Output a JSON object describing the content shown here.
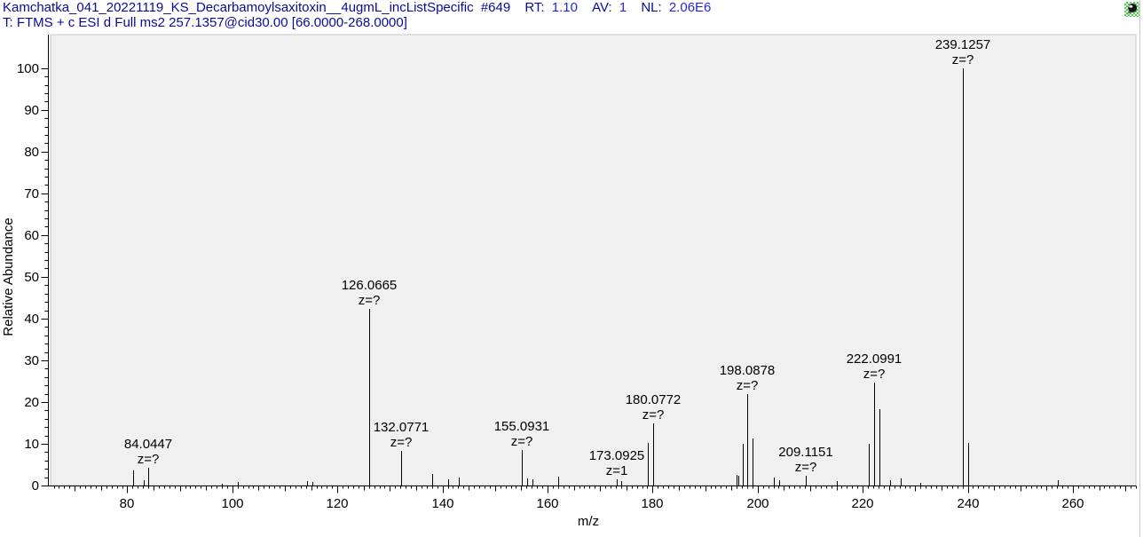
{
  "header": {
    "scan_title": "Kamchatka_041_20221119_KS_Decarbamoylsaxitoxin__4ugmL_incListSpecific",
    "scan_number": "#649",
    "rt_label": "RT:",
    "rt_value": "1.10",
    "av_label": "AV:",
    "av_value": "1",
    "nl_label": "NL:",
    "nl_value": "2.06E6",
    "filter_line": "T: FTMS + c ESI d Full ms2 257.1357@cid30.00 [66.0000-268.0000]"
  },
  "icon": {
    "name": "pin-icon"
  },
  "colors": {
    "header_label": "#0a0a96",
    "header_value": "#2626e0",
    "plot_background": "#f0f0f0",
    "plot_border": "#c9c9c9",
    "axis": "#000000",
    "peak": "#000000"
  },
  "chart_data": {
    "type": "bar",
    "subtype": "mass-spectrum",
    "title": "",
    "xlabel": "m/z",
    "ylabel": "Relative Abundance",
    "scan_range": [
      66.0,
      268.0
    ],
    "x_axis": {
      "display_min": 65.4,
      "display_max": 272.0,
      "tick_labels": [
        80,
        100,
        120,
        140,
        160,
        180,
        200,
        220,
        240,
        260
      ],
      "label_step": 20,
      "major_tick_step": 10,
      "mid_tick_step": 5,
      "minor_tick_step": 1
    },
    "y_axis": {
      "min": 0,
      "max": 100,
      "tick_labels": [
        0,
        10,
        20,
        30,
        40,
        50,
        60,
        70,
        80,
        90,
        100
      ],
      "label_step": 10,
      "minor_tick_step": 2
    },
    "peaks": [
      {
        "mz": 81.03,
        "intensity": 3.7
      },
      {
        "mz": 83.06,
        "intensity": 1.3
      },
      {
        "mz": 84.0447,
        "intensity": 4.3,
        "label": "84.0447",
        "charge": "z=?"
      },
      {
        "mz": 98.0,
        "intensity": 0.5
      },
      {
        "mz": 101.1,
        "intensity": 0.8
      },
      {
        "mz": 114.2,
        "intensity": 1.1
      },
      {
        "mz": 115.2,
        "intensity": 0.9
      },
      {
        "mz": 126.0665,
        "intensity": 42.3,
        "label": "126.0665",
        "charge": "z=?"
      },
      {
        "mz": 132.0771,
        "intensity": 8.3,
        "label": "132.0771",
        "charge": "z=?"
      },
      {
        "mz": 138.1,
        "intensity": 2.8
      },
      {
        "mz": 141.1,
        "intensity": 1.4
      },
      {
        "mz": 143.1,
        "intensity": 2.0
      },
      {
        "mz": 155.0931,
        "intensity": 8.5,
        "label": "155.0931",
        "charge": "z=?"
      },
      {
        "mz": 156.1,
        "intensity": 1.8
      },
      {
        "mz": 157.1,
        "intensity": 1.4
      },
      {
        "mz": 162.1,
        "intensity": 2.2
      },
      {
        "mz": 173.0925,
        "intensity": 1.5,
        "label": "173.0925",
        "charge": "z=1"
      },
      {
        "mz": 174.1,
        "intensity": 1.0
      },
      {
        "mz": 179.1,
        "intensity": 10.2
      },
      {
        "mz": 180.0772,
        "intensity": 14.8,
        "label": "180.0772",
        "charge": "z=?"
      },
      {
        "mz": 195.9,
        "intensity": 2.6
      },
      {
        "mz": 196.4,
        "intensity": 2.3
      },
      {
        "mz": 197.1,
        "intensity": 10.1
      },
      {
        "mz": 198.0878,
        "intensity": 22.0,
        "label": "198.0878",
        "charge": "z=?"
      },
      {
        "mz": 199.1,
        "intensity": 11.2
      },
      {
        "mz": 203.1,
        "intensity": 2.0
      },
      {
        "mz": 204.1,
        "intensity": 1.3
      },
      {
        "mz": 209.1151,
        "intensity": 2.3,
        "label": "209.1151",
        "charge": "z=?"
      },
      {
        "mz": 215.1,
        "intensity": 1.1
      },
      {
        "mz": 221.1,
        "intensity": 10.0
      },
      {
        "mz": 222.0991,
        "intensity": 24.7,
        "label": "222.0991",
        "charge": "z=?"
      },
      {
        "mz": 223.1,
        "intensity": 18.3
      },
      {
        "mz": 225.2,
        "intensity": 1.2
      },
      {
        "mz": 227.2,
        "intensity": 1.6
      },
      {
        "mz": 231.0,
        "intensity": 0.6
      },
      {
        "mz": 239.1257,
        "intensity": 100.0,
        "label": "239.1257",
        "charge": "z=?"
      },
      {
        "mz": 240.13,
        "intensity": 10.2
      },
      {
        "mz": 257.2,
        "intensity": 1.2
      }
    ]
  }
}
